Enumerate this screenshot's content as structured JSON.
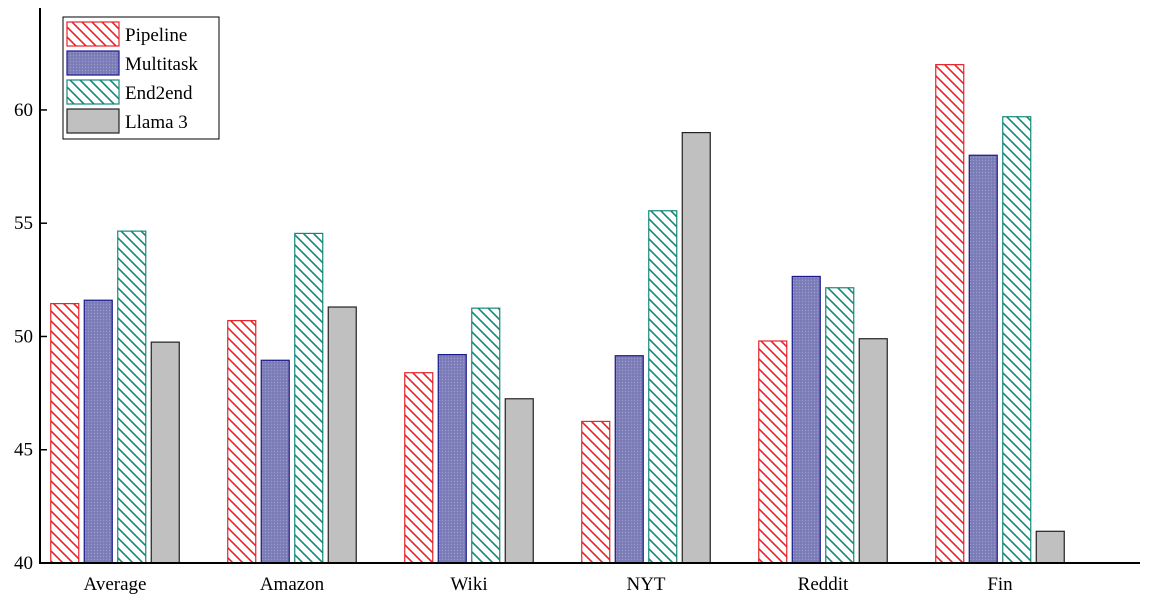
{
  "chart_data": {
    "type": "bar",
    "title": "",
    "xlabel": "",
    "ylabel": "",
    "categories": [
      "Average",
      "Amazon",
      "Wiki",
      "NYT",
      "Reddit",
      "Fin"
    ],
    "series": [
      {
        "name": "Pipeline",
        "values": [
          51.45,
          50.7,
          48.4,
          46.25,
          49.8,
          62.0
        ],
        "color": "#e8232a",
        "pattern": "hatch"
      },
      {
        "name": "Multitask",
        "values": [
          51.6,
          48.95,
          49.2,
          49.15,
          52.65,
          58.0
        ],
        "color": "#1a1a8c",
        "fill": "#7b7bb8",
        "pattern": "dots"
      },
      {
        "name": "End2end",
        "values": [
          54.65,
          54.55,
          51.25,
          55.55,
          52.15,
          59.7
        ],
        "color": "#14897a",
        "pattern": "hatch"
      },
      {
        "name": "Llama 3",
        "values": [
          49.75,
          51.3,
          47.25,
          59.0,
          49.9,
          41.4
        ],
        "color": "#222222",
        "fill": "#c0c0c0",
        "pattern": "solid"
      }
    ],
    "yticks": [
      40,
      45,
      50,
      55,
      60
    ],
    "ytick_labels": [
      "40",
      "45",
      "50",
      "55",
      "60"
    ],
    "ylim": [
      40,
      64.5
    ],
    "grid": false,
    "legend_position": "top-left"
  }
}
